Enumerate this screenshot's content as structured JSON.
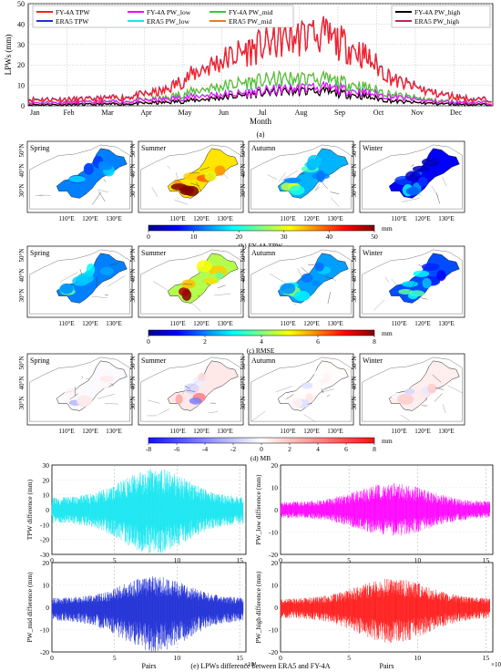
{
  "panel_a": {
    "caption": "(a)",
    "ylabel": "LPWs (mm)",
    "xlabel": "Month",
    "yticks": [
      "0",
      "10",
      "20",
      "30",
      "40",
      "50"
    ],
    "months": [
      "Jan",
      "Feb",
      "Mar",
      "Apr",
      "May",
      "Jun",
      "Jul",
      "Aug",
      "Sep",
      "Oct",
      "Nov",
      "Dec"
    ],
    "legend_left": [
      {
        "label": "FY-4A TPW",
        "color": "#ff2020"
      },
      {
        "label": "ERA5 TPW",
        "color": "#1f2fd6"
      }
    ],
    "legend_mid": [
      {
        "label": "FY-4A PW_low",
        "color": "#ff00ff"
      },
      {
        "label": "ERA5 PW_low",
        "color": "#19e6f0"
      }
    ],
    "legend_mid2": [
      {
        "label": "FY-4A PW_mid",
        "color": "#3cc83c"
      },
      {
        "label": "ERA5 PW_mid",
        "color": "#f07a1e"
      }
    ],
    "legend_right": [
      {
        "label": "FY-4A PW_high",
        "color": "#000000"
      },
      {
        "label": "ERA5 PW_high",
        "color": "#c0245a"
      }
    ]
  },
  "map_rows": [
    {
      "caption": "(b) FY-4A TPW",
      "unit": "mm",
      "ticks": [
        "0",
        "10",
        "20",
        "30",
        "40",
        "50"
      ],
      "scheme": "jet",
      "seasons": [
        "Spring",
        "Summer",
        "Autumn",
        "Winter"
      ]
    },
    {
      "caption": "(c) RMSE",
      "unit": "mm",
      "ticks": [
        "0",
        "2",
        "4",
        "6",
        "8"
      ],
      "scheme": "jet",
      "seasons": [
        "Spring",
        "Summer",
        "Autumn",
        "Winter"
      ]
    },
    {
      "caption": "(d) MB",
      "unit": "mm",
      "ticks": [
        "-8",
        "-6",
        "-4",
        "-2",
        "0",
        "2",
        "4",
        "6",
        "8"
      ],
      "scheme": "bwr",
      "seasons": [
        "Spring",
        "Summer",
        "Autumn",
        "Winter"
      ]
    }
  ],
  "map_axes": {
    "lat": [
      "50°N",
      "40°N",
      "30°N"
    ],
    "lon": [
      "110°E",
      "120°E",
      "130°E"
    ]
  },
  "diff_panels": [
    {
      "ylabel": "TPW difference (mm)",
      "yticks": [
        "30",
        "20",
        "10",
        "0",
        "-10",
        "-20",
        "-30"
      ],
      "color": "#19e6f0",
      "amp": [
        28,
        -30
      ]
    },
    {
      "ylabel": "PW_low difference (mm)",
      "yticks": [
        "20",
        "10",
        "0",
        "-10",
        "-20"
      ],
      "color": "#ff00ff",
      "amp": [
        12,
        -12
      ]
    },
    {
      "ylabel": "PW_mid difference (mm)",
      "yticks": [
        "20",
        "10",
        "0",
        "-10",
        "-20"
      ],
      "color": "#1f2fd6",
      "amp": [
        14,
        -20
      ]
    },
    {
      "ylabel": "PW_high difference (mm)",
      "yticks": [
        "20",
        "10",
        "0",
        "-10",
        "-20"
      ],
      "color": "#ff1a1a",
      "amp": [
        13,
        -16
      ]
    }
  ],
  "diff_common": {
    "xticks": [
      "0",
      "5",
      "10",
      "15"
    ],
    "xlabel": "Pairs",
    "exponent": "×10⁴",
    "caption": "(e) LPWs difference between ERA5 and FY-4A"
  },
  "chart_data": [
    {
      "type": "line",
      "title": "",
      "xlabel": "Month",
      "ylabel": "LPWs (mm)",
      "ylim": [
        0,
        50
      ],
      "categories": [
        "Jan",
        "Feb",
        "Mar",
        "Apr",
        "May",
        "Jun",
        "Jul",
        "Aug",
        "Sep",
        "Oct",
        "Nov",
        "Dec"
      ],
      "series": [
        {
          "name": "FY-4A TPW",
          "values": [
            3,
            3,
            4,
            7,
            18,
            26,
            32,
            35,
            27,
            12,
            6,
            3
          ]
        },
        {
          "name": "ERA5 TPW",
          "values": [
            3,
            3,
            4,
            7,
            18,
            26,
            32,
            35,
            27,
            12,
            6,
            3
          ]
        },
        {
          "name": "FY-4A PW_low",
          "values": [
            1.5,
            1.5,
            2,
            3,
            5,
            6,
            8,
            9,
            7,
            4,
            2,
            1.5
          ]
        },
        {
          "name": "ERA5 PW_low",
          "values": [
            1.5,
            1.5,
            2,
            3,
            5,
            6,
            8,
            9,
            7,
            4,
            2,
            1.5
          ]
        },
        {
          "name": "FY-4A PW_mid",
          "values": [
            1.5,
            1.5,
            2,
            3.5,
            8,
            11,
            13,
            13,
            10,
            5,
            2.5,
            1.5
          ]
        },
        {
          "name": "ERA5 PW_mid",
          "values": [
            1.5,
            1.5,
            2,
            3.5,
            8,
            11,
            13,
            13,
            10,
            5,
            2.5,
            1.5
          ]
        },
        {
          "name": "FY-4A PW_high",
          "values": [
            0.5,
            0.5,
            0.8,
            1.5,
            3,
            5,
            7,
            7,
            5,
            2,
            1,
            0.5
          ]
        },
        {
          "name": "ERA5 PW_high",
          "values": [
            0.5,
            0.5,
            0.8,
            1.5,
            3,
            5,
            7,
            7,
            5,
            2,
            1,
            0.5
          ]
        }
      ]
    },
    {
      "type": "heatmap",
      "title": "FY-4A TPW",
      "colorbar_range": [
        0,
        50
      ],
      "panels": [
        "Spring",
        "Summer",
        "Autumn",
        "Winter"
      ]
    },
    {
      "type": "heatmap",
      "title": "RMSE",
      "colorbar_range": [
        0,
        8
      ],
      "panels": [
        "Spring",
        "Summer",
        "Autumn",
        "Winter"
      ]
    },
    {
      "type": "heatmap",
      "title": "MB",
      "colorbar_range": [
        -8,
        8
      ],
      "panels": [
        "Spring",
        "Summer",
        "Autumn",
        "Winter"
      ]
    },
    {
      "type": "scatter",
      "ylabel": "TPW difference (mm)",
      "xlabel": "Pairs",
      "xlim": [
        0,
        15.5
      ],
      "ylim": [
        -30,
        30
      ]
    },
    {
      "type": "scatter",
      "ylabel": "PW_low difference (mm)",
      "xlabel": "Pairs",
      "xlim": [
        0,
        15.5
      ],
      "ylim": [
        -20,
        20
      ]
    },
    {
      "type": "scatter",
      "ylabel": "PW_mid difference (mm)",
      "xlabel": "Pairs",
      "xlim": [
        0,
        15.5
      ],
      "ylim": [
        -20,
        20
      ]
    },
    {
      "type": "scatter",
      "ylabel": "PW_high difference (mm)",
      "xlabel": "Pairs",
      "xlim": [
        0,
        15.5
      ],
      "ylim": [
        -20,
        20
      ]
    }
  ]
}
